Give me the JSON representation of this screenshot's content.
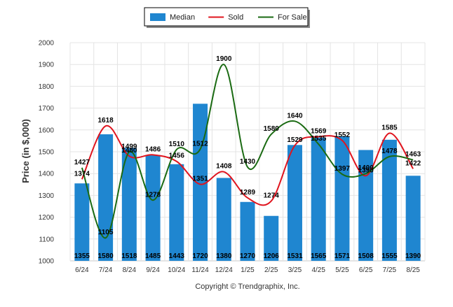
{
  "chart_data": {
    "type": "bar",
    "title": "",
    "ylabel": "Price (in $,000)",
    "xlabel": "",
    "ylim": [
      1000,
      2000
    ],
    "yticks": [
      "1000",
      "1100",
      "1200",
      "1300",
      "1400",
      "1500",
      "1600",
      "1700",
      "1800",
      "1900",
      "2000"
    ],
    "categories": [
      "6/24",
      "7/24",
      "8/24",
      "9/24",
      "10/24",
      "11/24",
      "12/24",
      "1/25",
      "2/25",
      "3/25",
      "4/25",
      "5/25",
      "6/25",
      "7/25",
      "8/25"
    ],
    "grid": true,
    "legend_position": "top-center",
    "series": [
      {
        "name": "Median",
        "kind": "bar",
        "color": "#1f86d0",
        "values": [
          1355,
          1580,
          1518,
          1485,
          1443,
          1720,
          1380,
          1270,
          1206,
          1531,
          1565,
          1571,
          1508,
          1555,
          1390
        ]
      },
      {
        "name": "Sold",
        "kind": "line",
        "color": "#e0141e",
        "values": [
          1374,
          1618,
          1480,
          1486,
          1456,
          1351,
          1408,
          1289,
          1274,
          1529,
          1569,
          1552,
          1390,
          1585,
          1422
        ]
      },
      {
        "name": "For Sale",
        "kind": "line",
        "color": "#1a6a12",
        "values": [
          1427,
          1105,
          1499,
          1278,
          1510,
          1512,
          1900,
          1430,
          1580,
          1640,
          1535,
          1397,
          1400,
          1478,
          1463
        ]
      }
    ]
  },
  "copyright": "Copyright © Trendgraphix, Inc."
}
